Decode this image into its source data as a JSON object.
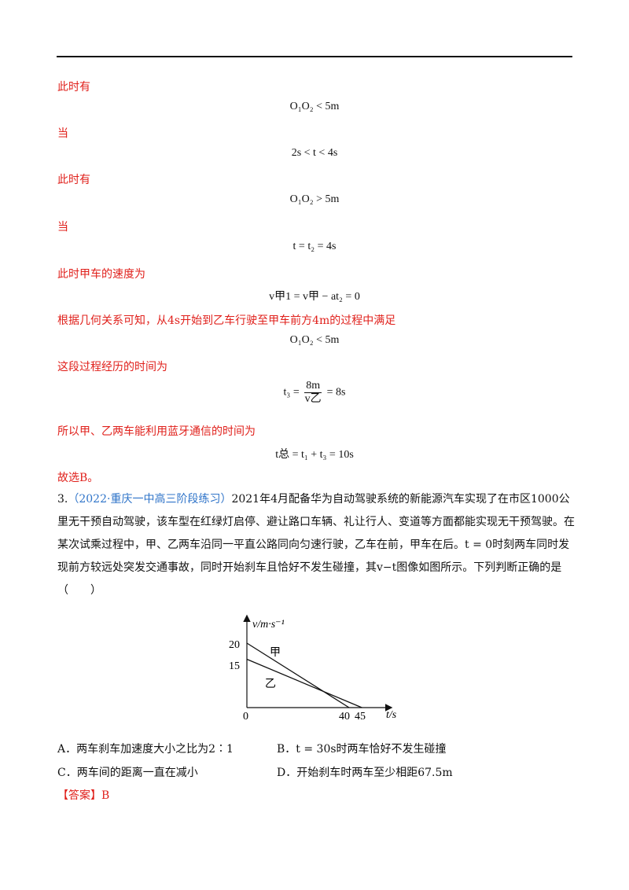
{
  "solution": {
    "line1": "此时有",
    "eq1": "O₁O₂ < 5m",
    "line2": "当",
    "eq2": "2s < t < 4s",
    "line3": "此时有",
    "eq3": "O₁O₂ > 5m",
    "line4": "当",
    "eq4": "t = t₂ = 4s",
    "line5": "此时甲车的速度为",
    "eq5": "v甲1 = v甲 − at₂ = 0",
    "line6": "根据几何关系可知，从4s开始到乙车行驶至甲车前方4m的过程中满足",
    "eq6": "O₁O₂ < 5m",
    "line7": "这段过程经历的时间为",
    "eq7_lhs": "t₃ =",
    "eq7_num": "8m",
    "eq7_den": "v乙",
    "eq7_rhs": "= 8s",
    "line8": "所以甲、乙两车能利用蓝牙通信的时间为",
    "eq8": "t总 = t₁ + t₃ = 10s",
    "line9": "故选B。"
  },
  "question": {
    "number": "3.",
    "source": "（2022·重庆一中高三阶段练习）",
    "text": "2021年4月配备华为自动驾驶系统的新能源汽车实现了在市区1000公里无干预自动驾驶，该车型在红绿灯启停、避让路口车辆、礼让行人、变道等方面都能实现无干预驾驶。在某次试乘过程中，甲、乙两车沿同一平直公路同向匀速行驶，乙车在前，甲车在后。t = 0时刻两车同时发现前方较远处突发交通事故，同时开始刹车且恰好不发生碰撞，其v−t图像如图所示。下列判断正确的是（　　）"
  },
  "chart_data": {
    "type": "line",
    "ylabel": "v/m·s⁻¹",
    "xlabel": "t/s",
    "origin_label": "0",
    "y_ticks": [
      "20",
      "15"
    ],
    "x_ticks": [
      "40",
      "45"
    ],
    "series": [
      {
        "name": "甲",
        "x": [
          0,
          40
        ],
        "y": [
          20,
          0
        ]
      },
      {
        "name": "乙",
        "x": [
          0,
          45
        ],
        "y": [
          15,
          0
        ]
      }
    ]
  },
  "options": {
    "A": "A．两车刹车加速度大小之比为2∶1",
    "B": "B．t = 30s时两车恰好不发生碰撞",
    "C": "C．两车间的距离一直在减小",
    "D": "D．开始刹车时两车至少相距67.5m"
  },
  "answer": "【答案】B"
}
